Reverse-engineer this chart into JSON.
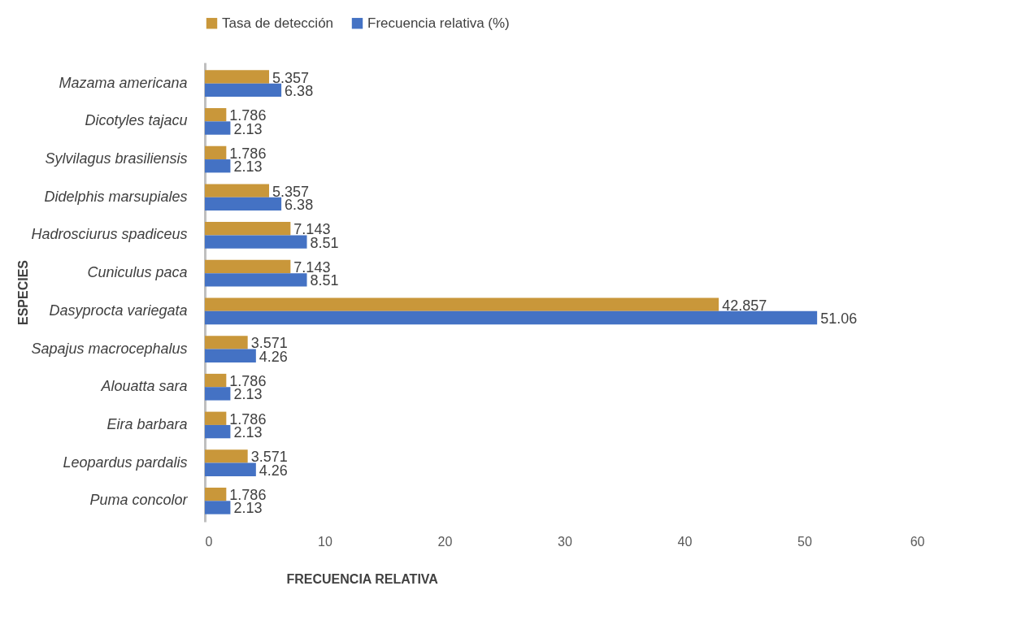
{
  "chart_data": {
    "type": "bar",
    "orientation": "horizontal",
    "xlabel": "FRECUENCIA RELATIVA",
    "ylabel": "ESPECIES",
    "categories": [
      "Mazama americana",
      "Dicotyles tajacu",
      "Sylvilagus brasiliensis",
      "Didelphis marsupiales",
      "Hadrosciurus spadiceus",
      "Cuniculus paca",
      "Dasyprocta variegata",
      "Sapajus macrocephalus",
      "Alouatta sara",
      "Eira barbara",
      "Leopardus pardalis",
      "Puma concolor"
    ],
    "series": [
      {
        "name": "Tasa de detección",
        "color": "#c9973a",
        "values": [
          5.357,
          1.786,
          1.786,
          5.357,
          7.143,
          7.143,
          42.857,
          3.571,
          1.786,
          1.786,
          3.571,
          1.786
        ]
      },
      {
        "name": "Frecuencia relativa (%)",
        "color": "#4472c4",
        "values": [
          6.38,
          2.13,
          2.13,
          6.38,
          8.51,
          8.51,
          51.06,
          4.26,
          2.13,
          2.13,
          4.26,
          2.13
        ]
      }
    ],
    "xlim": [
      0,
      60
    ],
    "xticks": [
      0,
      10,
      20,
      30,
      40,
      50,
      60
    ],
    "data_labels": true,
    "legend": "top",
    "grid": false
  }
}
